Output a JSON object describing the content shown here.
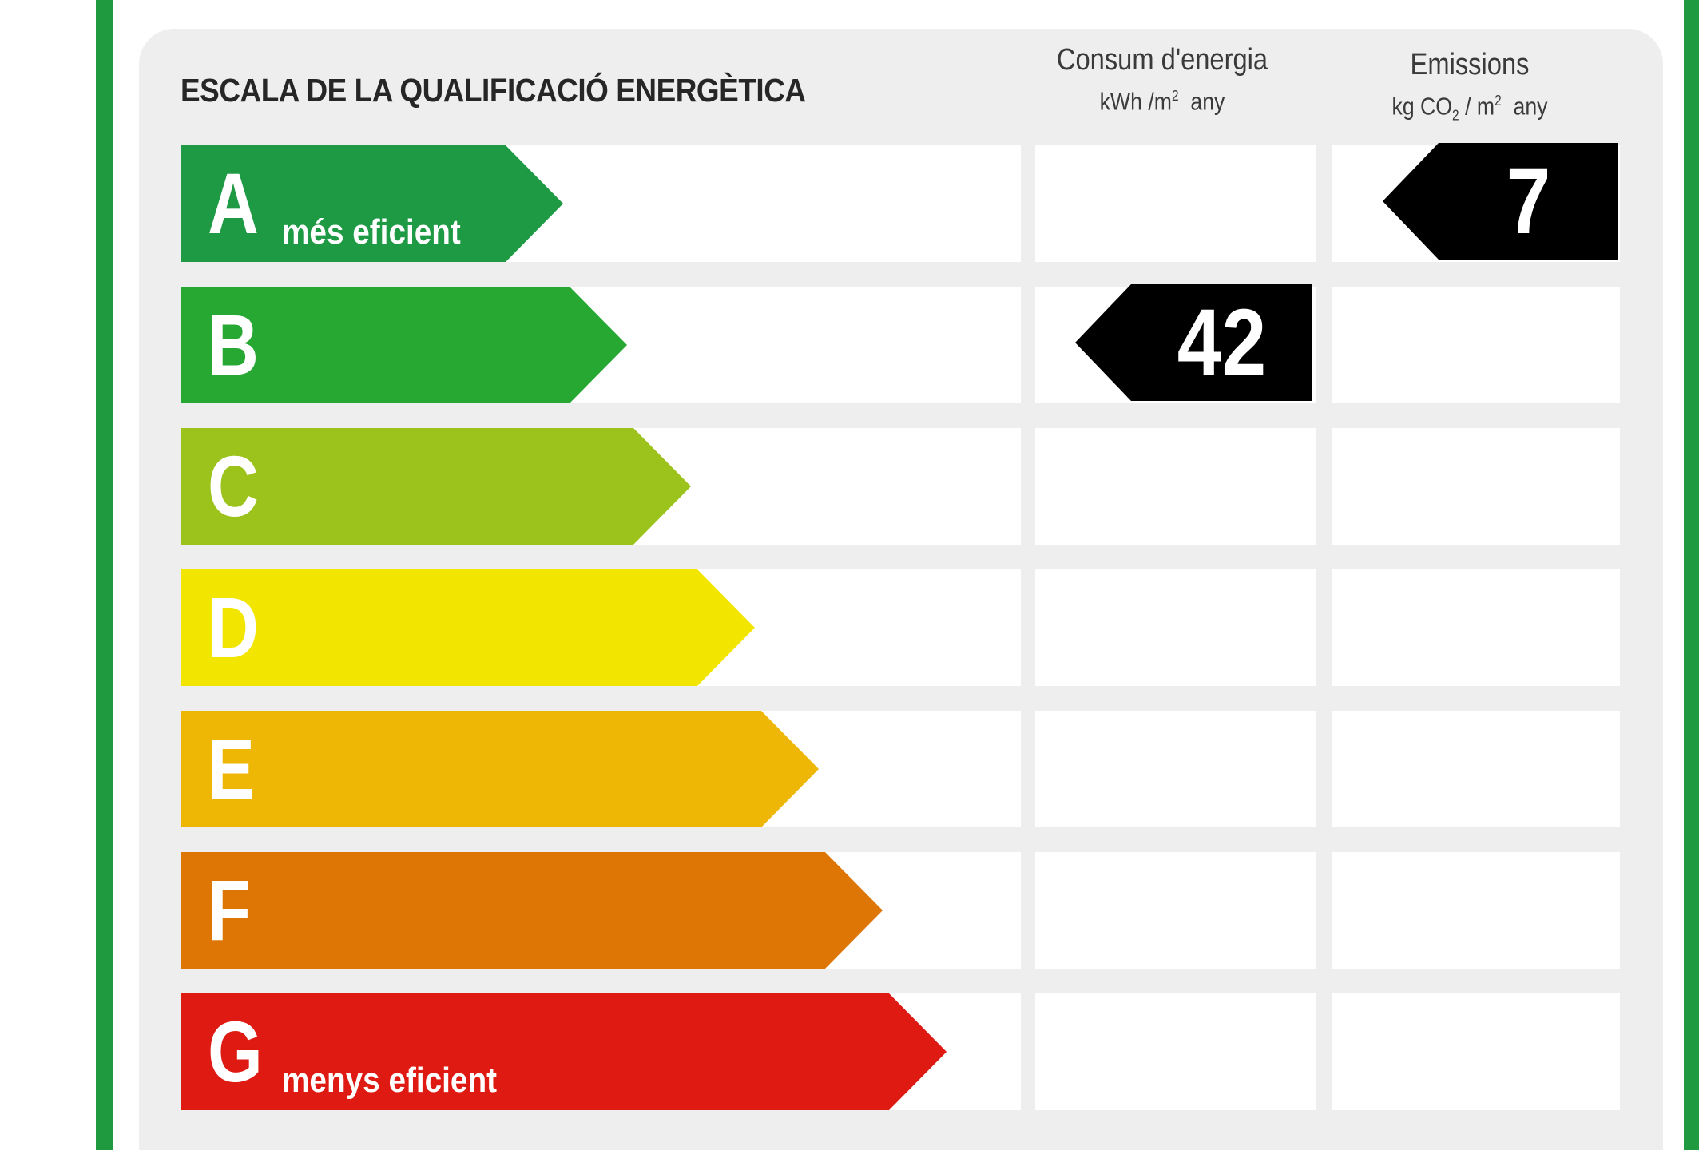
{
  "title": "ESCALA DE LA QUALIFICACIÓ ENERGÈTICA",
  "columns": {
    "consumption": {
      "label": "Consum d'energia",
      "unit_prefix": "kWh /m",
      "unit_sup": "2",
      "unit_suffix": "any"
    },
    "emissions": {
      "label": "Emissions",
      "unit_prefix": "kg CO",
      "unit_sub": "2",
      "unit_mid": " / m",
      "unit_sup": "2",
      "unit_suffix": "any"
    }
  },
  "classes": [
    {
      "letter": "A",
      "sublabel": "més eficient",
      "color": "#1e9a45"
    },
    {
      "letter": "B",
      "sublabel": "",
      "color": "#26a833"
    },
    {
      "letter": "C",
      "sublabel": "",
      "color": "#9cc31c"
    },
    {
      "letter": "D",
      "sublabel": "",
      "color": "#f2e600"
    },
    {
      "letter": "E",
      "sublabel": "",
      "color": "#efb705"
    },
    {
      "letter": "F",
      "sublabel": "",
      "color": "#de7606"
    },
    {
      "letter": "G",
      "sublabel": "menys eficient",
      "color": "#de1a12"
    }
  ],
  "consumption_rating": {
    "class": "B",
    "value": "42"
  },
  "emissions_rating": {
    "class": "A",
    "value": "7"
  },
  "marker_color": "#000000",
  "border_color": "#1f9a3e"
}
